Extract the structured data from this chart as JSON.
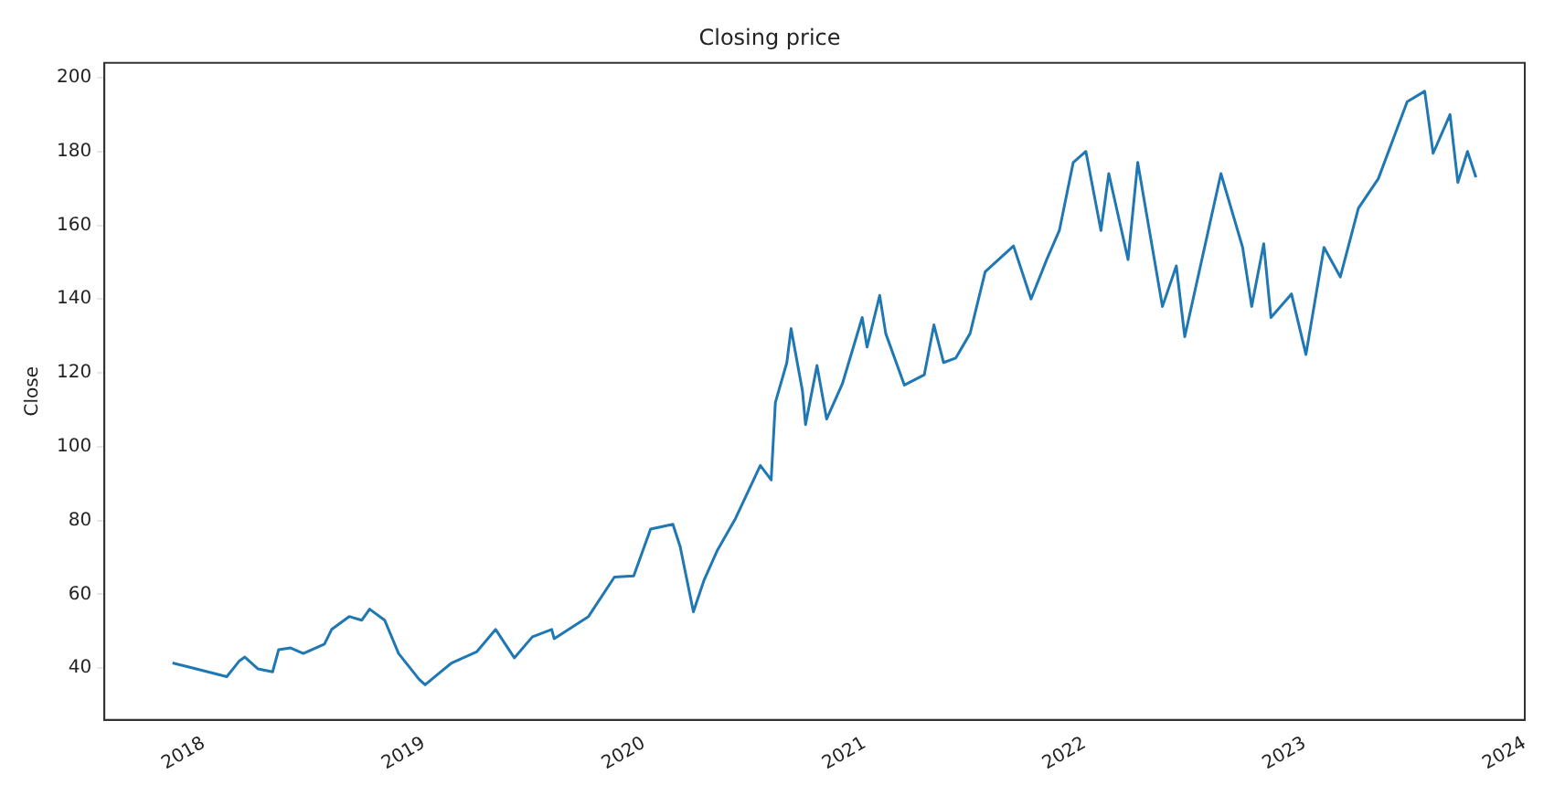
{
  "chart_data": {
    "type": "line",
    "title": "Closing price",
    "ylabel": "Close",
    "x": [
      "2017-11-10",
      "2017-12-15",
      "2018-02-08",
      "2018-03-01",
      "2018-03-10",
      "2018-04-01",
      "2018-04-25",
      "2018-05-05",
      "2018-05-25",
      "2018-06-15",
      "2018-07-20",
      "2018-08-01",
      "2018-08-30",
      "2018-09-20",
      "2018-10-03",
      "2018-10-28",
      "2018-11-20",
      "2018-12-24",
      "2019-01-03",
      "2019-01-25",
      "2019-02-15",
      "2019-03-30",
      "2019-04-30",
      "2019-05-31",
      "2019-06-30",
      "2019-08-01",
      "2019-08-05",
      "2019-10-01",
      "2019-11-13",
      "2019-12-15",
      "2020-01-12",
      "2020-02-18",
      "2020-03-01",
      "2020-03-23",
      "2020-04-10",
      "2020-05-02",
      "2020-06-01",
      "2020-07-12",
      "2020-07-30",
      "2020-08-06",
      "2020-08-25",
      "2020-09-01",
      "2020-09-20",
      "2020-09-25",
      "2020-10-14",
      "2020-10-30",
      "2020-11-25",
      "2020-12-28",
      "2021-01-05",
      "2021-01-26",
      "2021-02-05",
      "2021-03-08",
      "2021-04-10",
      "2021-04-26",
      "2021-05-12",
      "2021-06-01",
      "2021-06-25",
      "2021-07-20",
      "2021-09-05",
      "2021-10-04",
      "2021-10-30",
      "2021-11-20",
      "2021-12-13",
      "2022-01-03",
      "2022-01-28",
      "2022-02-10",
      "2022-03-14",
      "2022-03-30",
      "2022-05-10",
      "2022-06-02",
      "2022-06-16",
      "2022-08-15",
      "2022-09-20",
      "2022-10-05",
      "2022-10-25",
      "2022-11-06",
      "2022-12-10",
      "2023-01-03",
      "2023-02-02",
      "2023-03-01",
      "2023-03-31",
      "2023-05-03",
      "2023-06-20",
      "2023-07-19",
      "2023-08-02",
      "2023-08-30",
      "2023-09-12",
      "2023-09-28",
      "2023-10-12"
    ],
    "series": [
      {
        "color": "#1f77b4",
        "values": [
          41.4,
          40,
          37.7,
          42,
          43,
          39.8,
          39,
          45,
          45.5,
          44,
          46.5,
          50.5,
          54,
          53,
          56,
          53,
          44,
          37,
          35.5,
          38.5,
          41.3,
          44.5,
          50.5,
          42.8,
          48.5,
          50.5,
          48,
          54,
          64.7,
          65,
          77.7,
          79,
          73,
          55.3,
          64,
          72,
          80.6,
          94.9,
          91,
          112,
          122.8,
          132,
          115,
          106,
          122,
          107.5,
          117,
          135,
          127,
          141,
          130.7,
          116.7,
          119.5,
          133,
          122.8,
          124,
          130.7,
          147.4,
          154.4,
          140,
          150.7,
          158.6,
          177,
          180,
          158.6,
          174,
          150.7,
          177,
          138,
          149,
          129.8,
          174,
          154,
          138,
          155,
          135,
          141.4,
          125,
          154,
          146,
          164.6,
          172.6,
          193.5,
          196.3,
          179.5,
          190,
          171.6,
          180,
          173
        ]
      }
    ],
    "xlim": [
      "2017-07-20",
      "2024-01-01"
    ],
    "xticks": [
      "2018",
      "2019",
      "2020",
      "2021",
      "2022",
      "2023",
      "2024"
    ],
    "ylim": [
      26,
      204
    ],
    "yticks": [
      40,
      60,
      80,
      100,
      120,
      140,
      160,
      180,
      200
    ],
    "grid": false,
    "legend": false,
    "marker": "none",
    "line_style": "solid"
  }
}
